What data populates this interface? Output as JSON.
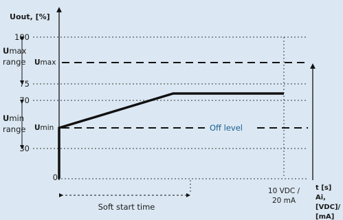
{
  "y_axis": {
    "title_bold": "U",
    "title_rest": "out, [%]"
  },
  "y_ticks": [
    "100",
    "75",
    "70",
    "30",
    "0"
  ],
  "umax_range": {
    "bold": "U",
    "line1": "max",
    "line2": "range"
  },
  "umin_range": {
    "bold": "U",
    "line1": "min",
    "line2": "range"
  },
  "umax_label": {
    "bold": "U",
    "sub": "max"
  },
  "umin_label": {
    "bold": "U",
    "sub": "min"
  },
  "off_level": "Off level",
  "x_end": {
    "line1": "10 VDC /",
    "line2": "20 mA"
  },
  "x_axis": {
    "line1": "t [s]",
    "line2": "Ai,",
    "line3": "[VDC]/",
    "line4": "[mA]"
  },
  "soft_start": "Soft start time",
  "colors": {
    "background": "#dbe8f3",
    "accent": "#1a5d8f",
    "line": "#111111"
  }
}
